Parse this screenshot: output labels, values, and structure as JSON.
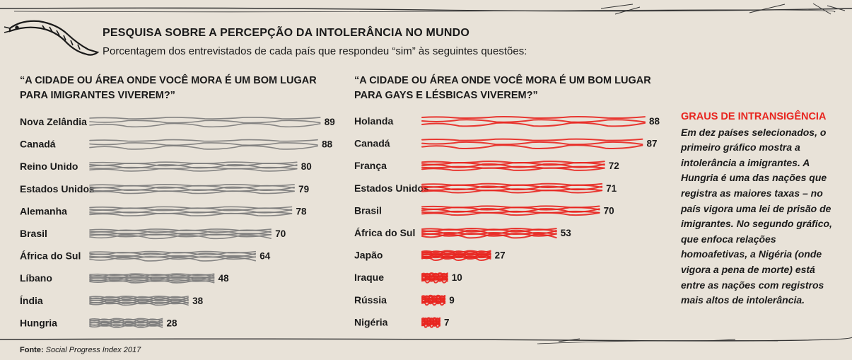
{
  "header": {
    "title": "PESQUISA SOBRE A PERCEPÇÃO DA INTOLERÂNCIA NO MUNDO",
    "subtitle": "Porcentagem dos entrevistados de cada país que respondeu “sim” às seguintes questões:"
  },
  "chart_data": [
    {
      "type": "bar",
      "orientation": "horizontal",
      "title": "“A CIDADE OU ÁREA ONDE VOCÊ MORA É UM BOM LUGAR PARA IMIGRANTES VIVEREM?”",
      "categories": [
        "Nova Zelândia",
        "Canadá",
        "Reino Unido",
        "Estados Unidos",
        "Alemanha",
        "Brasil",
        "África do Sul",
        "Líbano",
        "Índia",
        "Hungria"
      ],
      "values": [
        89,
        88,
        80,
        79,
        78,
        70,
        64,
        48,
        38,
        28
      ],
      "color": "#7a7a7a",
      "xlim": [
        0,
        100
      ],
      "grid": false
    },
    {
      "type": "bar",
      "orientation": "horizontal",
      "title": "“A CIDADE OU ÁREA ONDE VOCÊ MORA É UM BOM LUGAR PARA GAYS E LÉSBICAS VIVEREM?”",
      "categories": [
        "Holanda",
        "Canadá",
        "França",
        "Estados Unidos",
        "Brasil",
        "África do Sul",
        "Japão",
        "Iraque",
        "Rússia",
        "Nigéria"
      ],
      "values": [
        88,
        87,
        72,
        71,
        70,
        53,
        27,
        10,
        9,
        7
      ],
      "color": "#e8251f",
      "xlim": [
        0,
        100
      ],
      "grid": false
    }
  ],
  "sidebar": {
    "title": "GRAUS DE INTRANSIGÊNCIA",
    "body": "Em dez países selecionados, o primeiro gráfico mostra a intolerância a imigrantes. A Hungria é uma das nações que registra as maiores taxas – no país vigora uma lei de prisão de imigrantes. No segundo gráfico, que enfoca relações homoafetivas, a Nigéria (onde vigora a pena de morte) está entre as nações com registros mais altos de intolerância."
  },
  "footer": {
    "source_label": "Fonte:",
    "source_value": "Social Progress Index 2017"
  },
  "colors": {
    "background": "#e8e2d8",
    "text": "#1a1a1a",
    "gray_bars": "#7a7a7a",
    "red_bars": "#e8251f"
  },
  "icons": {
    "decoration": "snake-icon"
  }
}
